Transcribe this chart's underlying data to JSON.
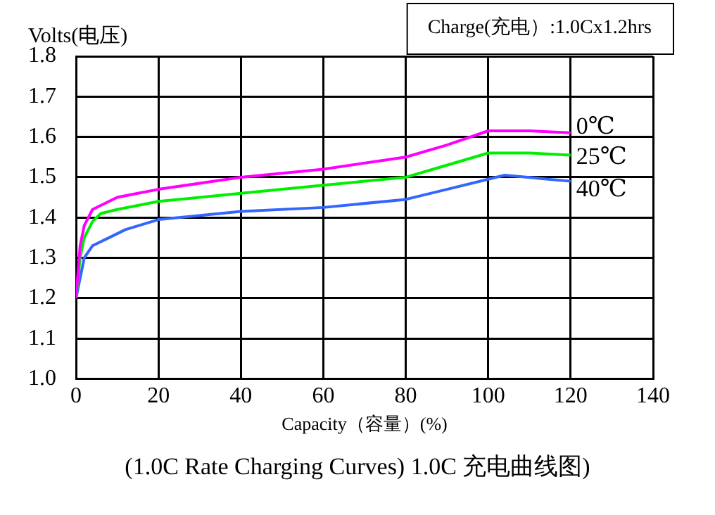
{
  "chart_data": {
    "type": "line",
    "title": "(1.0C Rate Charging Curves) 1.0C 充电曲线图)",
    "xlabel": "Capacity（容量）(%)",
    "ylabel": "Volts(电压)",
    "annotations": [
      "Charge(充电）:1.0Cx1.2hrs"
    ],
    "xlim": [
      0,
      140
    ],
    "xticks": [
      0,
      20,
      40,
      60,
      80,
      100,
      120,
      140
    ],
    "ylim": [
      1.0,
      1.8
    ],
    "yticks": [
      {
        "value": 1.0,
        "label": "1.0"
      },
      {
        "value": 1.1,
        "label": "1.1"
      },
      {
        "value": 1.2,
        "label": "1.2"
      },
      {
        "value": 1.3,
        "label": "1.3"
      },
      {
        "value": 1.4,
        "label": "1.4"
      },
      {
        "value": 1.5,
        "label": "1.5"
      },
      {
        "value": 1.6,
        "label": "1.6"
      },
      {
        "value": 1.7,
        "label": "1.7"
      },
      {
        "value": 1.8,
        "label": "1.8"
      }
    ],
    "grid": true,
    "legend": false,
    "marker": "none",
    "line_style": "solid",
    "series": [
      {
        "name": "0℃",
        "color": "#ff00ff",
        "x": [
          0,
          1,
          2,
          4,
          6,
          10,
          15,
          20,
          40,
          60,
          80,
          90,
          100,
          110,
          120
        ],
        "values": [
          1.2,
          1.33,
          1.38,
          1.42,
          1.43,
          1.45,
          1.46,
          1.47,
          1.5,
          1.52,
          1.55,
          1.58,
          1.615,
          1.615,
          1.61
        ]
      },
      {
        "name": "25℃",
        "color": "#00ee00",
        "x": [
          0,
          1,
          2,
          4,
          6,
          10,
          20,
          40,
          60,
          80,
          90,
          100,
          110,
          120
        ],
        "values": [
          1.2,
          1.3,
          1.35,
          1.39,
          1.41,
          1.42,
          1.44,
          1.46,
          1.48,
          1.5,
          1.53,
          1.56,
          1.56,
          1.555
        ]
      },
      {
        "name": "40℃",
        "color": "#3366ff",
        "x": [
          0,
          2,
          4,
          8,
          12,
          20,
          40,
          60,
          80,
          90,
          100,
          104,
          120
        ],
        "values": [
          1.2,
          1.3,
          1.33,
          1.35,
          1.37,
          1.395,
          1.415,
          1.425,
          1.445,
          1.47,
          1.495,
          1.505,
          1.49
        ]
      }
    ]
  }
}
